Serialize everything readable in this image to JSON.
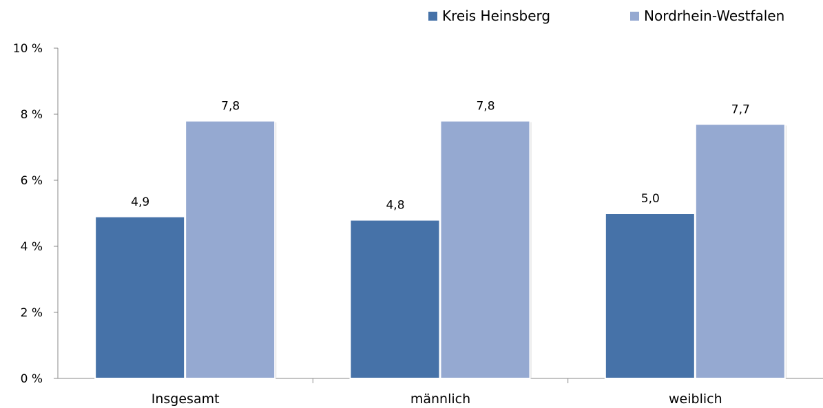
{
  "chart_data": {
    "type": "bar",
    "title": "",
    "xlabel": "",
    "ylabel": "",
    "categories": [
      "Insgesamt",
      "männlich",
      "weiblich"
    ],
    "series": [
      {
        "name": "Kreis Heinsberg",
        "color": "#4672a8",
        "values": [
          4.9,
          4.8,
          5.0
        ],
        "labels": [
          "4,9",
          "4,8",
          "5,0"
        ]
      },
      {
        "name": "Nordrhein-Westfalen",
        "color": "#95a9d1",
        "values": [
          7.8,
          7.8,
          7.7
        ],
        "labels": [
          "7,8",
          "7,8",
          "7,7"
        ]
      }
    ],
    "ylim": [
      0,
      10
    ],
    "yticks": [
      0,
      2,
      4,
      6,
      8,
      10
    ],
    "ytick_labels": [
      "0 %",
      "2 %",
      "4 %",
      "6 %",
      "8 %",
      "10 %"
    ],
    "grid": false,
    "legend_position": "top-right"
  }
}
